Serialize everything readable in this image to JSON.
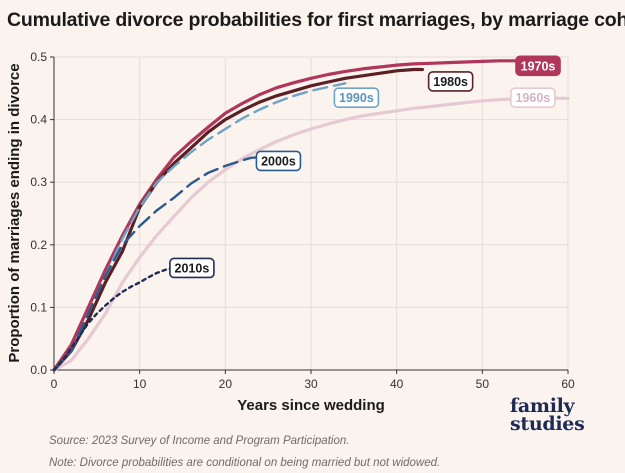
{
  "title": "Cumulative divorce probabilities for first marriages, by marriage cohort",
  "source": "Source: 2023 Survey of Income and Program Participation.",
  "note": "Note: Divorce probabilities are conditional on being married but not widowed.",
  "brand": {
    "line1": "family",
    "line2": "studies"
  },
  "chart_data": {
    "type": "line",
    "xlabel": "Years since wedding",
    "ylabel": "Proportion of marriages ending in divorce",
    "xlim": [
      0,
      60
    ],
    "ylim": [
      0,
      0.5
    ],
    "xticks": [
      0,
      10,
      20,
      30,
      40,
      50,
      60
    ],
    "yticks": [
      0.0,
      0.1,
      0.2,
      0.3,
      0.4,
      0.5
    ],
    "ytick_labels": [
      "0.0",
      "0.1",
      "0.2",
      "0.3",
      "0.4",
      "0.5"
    ],
    "grid": true,
    "series": [
      {
        "name": "1960s",
        "color": "#e6c9d3",
        "dash": "solid",
        "x": [
          0,
          2,
          4,
          6,
          8,
          10,
          12,
          14,
          16,
          18,
          20,
          22,
          24,
          26,
          28,
          30,
          32,
          34,
          36,
          38,
          40,
          42,
          44,
          46,
          48,
          50,
          52,
          54,
          56,
          58,
          60
        ],
        "y": [
          0,
          0.015,
          0.05,
          0.09,
          0.14,
          0.18,
          0.215,
          0.245,
          0.275,
          0.3,
          0.32,
          0.338,
          0.352,
          0.365,
          0.376,
          0.385,
          0.393,
          0.4,
          0.406,
          0.41,
          0.414,
          0.418,
          0.421,
          0.424,
          0.427,
          0.43,
          0.432,
          0.433,
          0.434,
          0.434,
          0.434
        ]
      },
      {
        "name": "1970s",
        "color": "#b0365c",
        "dash": "solid",
        "x": [
          0,
          2,
          4,
          6,
          8,
          10,
          12,
          14,
          16,
          18,
          20,
          22,
          24,
          26,
          28,
          30,
          32,
          34,
          36,
          38,
          40,
          42,
          44,
          46,
          48,
          50,
          52,
          54
        ],
        "y": [
          0,
          0.04,
          0.1,
          0.16,
          0.215,
          0.265,
          0.305,
          0.34,
          0.365,
          0.388,
          0.41,
          0.426,
          0.44,
          0.451,
          0.459,
          0.466,
          0.472,
          0.477,
          0.481,
          0.484,
          0.487,
          0.489,
          0.49,
          0.491,
          0.492,
          0.493,
          0.494,
          0.494
        ]
      },
      {
        "name": "1980s",
        "color": "#5a2024",
        "dash": "solid",
        "x": [
          0,
          2,
          4,
          6,
          8,
          9,
          10,
          12,
          14,
          16,
          18,
          20,
          22,
          24,
          26,
          28,
          30,
          32,
          34,
          36,
          38,
          40,
          42,
          43
        ],
        "y": [
          0,
          0.03,
          0.08,
          0.14,
          0.19,
          0.225,
          0.26,
          0.3,
          0.33,
          0.355,
          0.38,
          0.4,
          0.415,
          0.428,
          0.438,
          0.446,
          0.454,
          0.46,
          0.466,
          0.47,
          0.474,
          0.478,
          0.48,
          0.48
        ]
      },
      {
        "name": "1990s",
        "color": "#6fa3c6",
        "dash": "dash",
        "x": [
          0,
          2,
          4,
          6,
          8,
          10,
          12,
          14,
          16,
          18,
          20,
          22,
          24,
          26,
          28,
          30,
          32,
          34
        ],
        "y": [
          0,
          0.03,
          0.09,
          0.15,
          0.21,
          0.26,
          0.3,
          0.325,
          0.348,
          0.368,
          0.385,
          0.402,
          0.416,
          0.428,
          0.438,
          0.446,
          0.452,
          0.458
        ]
      },
      {
        "name": "2000s",
        "color": "#2d5a8c",
        "dash": "dash",
        "x": [
          0,
          2,
          4,
          6,
          8,
          10,
          12,
          14,
          16,
          18,
          20,
          22,
          23,
          24
        ],
        "y": [
          0,
          0.03,
          0.09,
          0.15,
          0.2,
          0.23,
          0.255,
          0.275,
          0.298,
          0.315,
          0.326,
          0.335,
          0.339,
          0.34
        ]
      },
      {
        "name": "2010s",
        "color": "#1f2e55",
        "dash": "dot",
        "x": [
          0,
          1,
          2,
          3,
          4,
          5,
          6,
          7,
          8,
          9,
          10,
          11,
          12,
          13,
          14
        ],
        "y": [
          0,
          0.015,
          0.035,
          0.055,
          0.075,
          0.09,
          0.103,
          0.115,
          0.125,
          0.133,
          0.14,
          0.148,
          0.155,
          0.16,
          0.163
        ]
      }
    ],
    "annotations": [
      {
        "text": "1970s",
        "series": "1970s",
        "x": 56.5,
        "y": 0.486,
        "box": "filled"
      },
      {
        "text": "1980s",
        "series": "1980s",
        "x": 46.3,
        "y": 0.461,
        "box": "outline"
      },
      {
        "text": "1990s",
        "series": "1990s",
        "x": 35.3,
        "y": 0.435,
        "box": "outline"
      },
      {
        "text": "1960s",
        "series": "1960s",
        "x": 55.9,
        "y": 0.435,
        "box": "outline"
      },
      {
        "text": "2000s",
        "series": "2000s",
        "x": 26.2,
        "y": 0.334,
        "box": "outline"
      },
      {
        "text": "2010s",
        "series": "2010s",
        "x": 16.1,
        "y": 0.163,
        "box": "outline"
      }
    ]
  }
}
